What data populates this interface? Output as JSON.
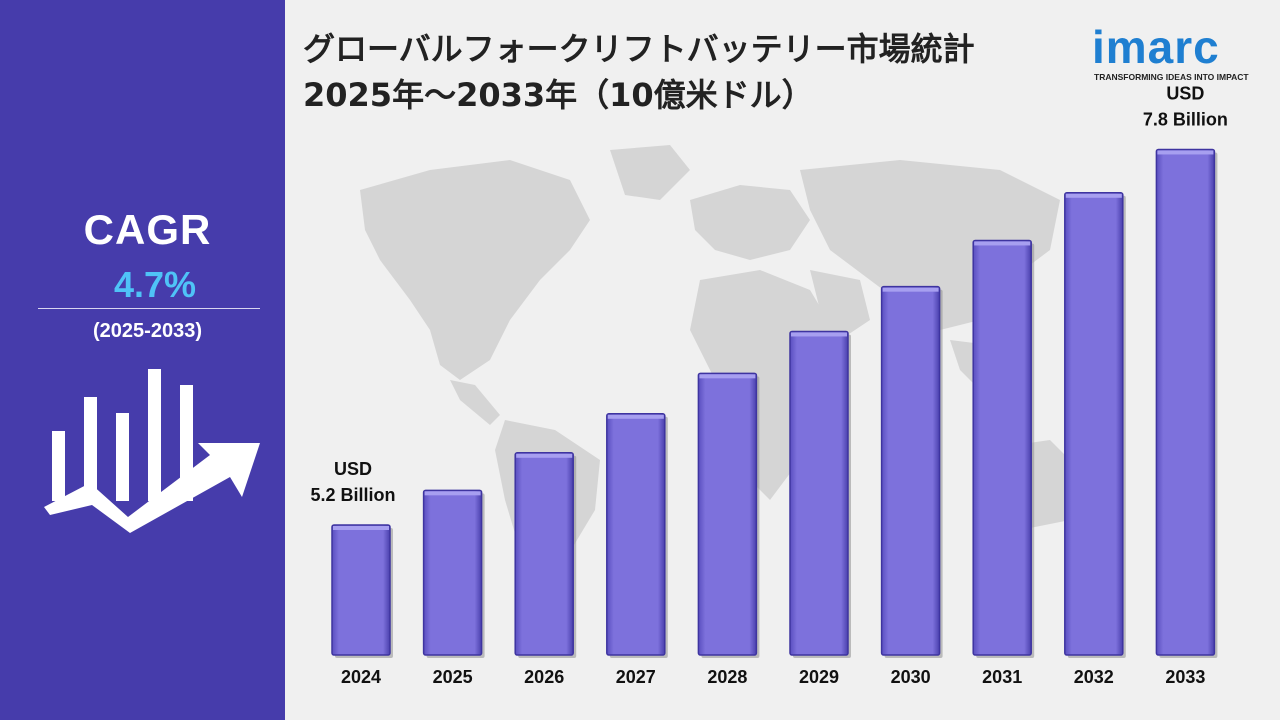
{
  "title": "グローバルフォークリフトバッテリー市場統計 2025年～2033年（10億米ドル）",
  "logo": {
    "name": "imarc",
    "tagline": "TRANSFORMING IDEAS INTO IMPACT"
  },
  "cagr": {
    "label": "CAGR",
    "value": "4.7%",
    "period": "(2025-2033)"
  },
  "colors": {
    "panel": "#463cab",
    "bar": "#7b6fd9",
    "accent": "#4fc3f7",
    "logo": "#1f7fd1"
  },
  "icons": [
    "growth-chart-icon",
    "world-map-icon"
  ],
  "chart_data": {
    "type": "bar",
    "categories": [
      "2024",
      "2025",
      "2026",
      "2027",
      "2028",
      "2029",
      "2030",
      "2031",
      "2032",
      "2033"
    ],
    "values": [
      5.2,
      5.44,
      5.7,
      5.97,
      6.25,
      6.54,
      6.85,
      7.17,
      7.5,
      7.8
    ],
    "annotations": [
      {
        "category": "2024",
        "line1": "USD",
        "line2": "5.2 Billion"
      },
      {
        "category": "2033",
        "line1": "USD",
        "line2": "7.8 Billion"
      }
    ],
    "grid": false,
    "legend": "none"
  }
}
